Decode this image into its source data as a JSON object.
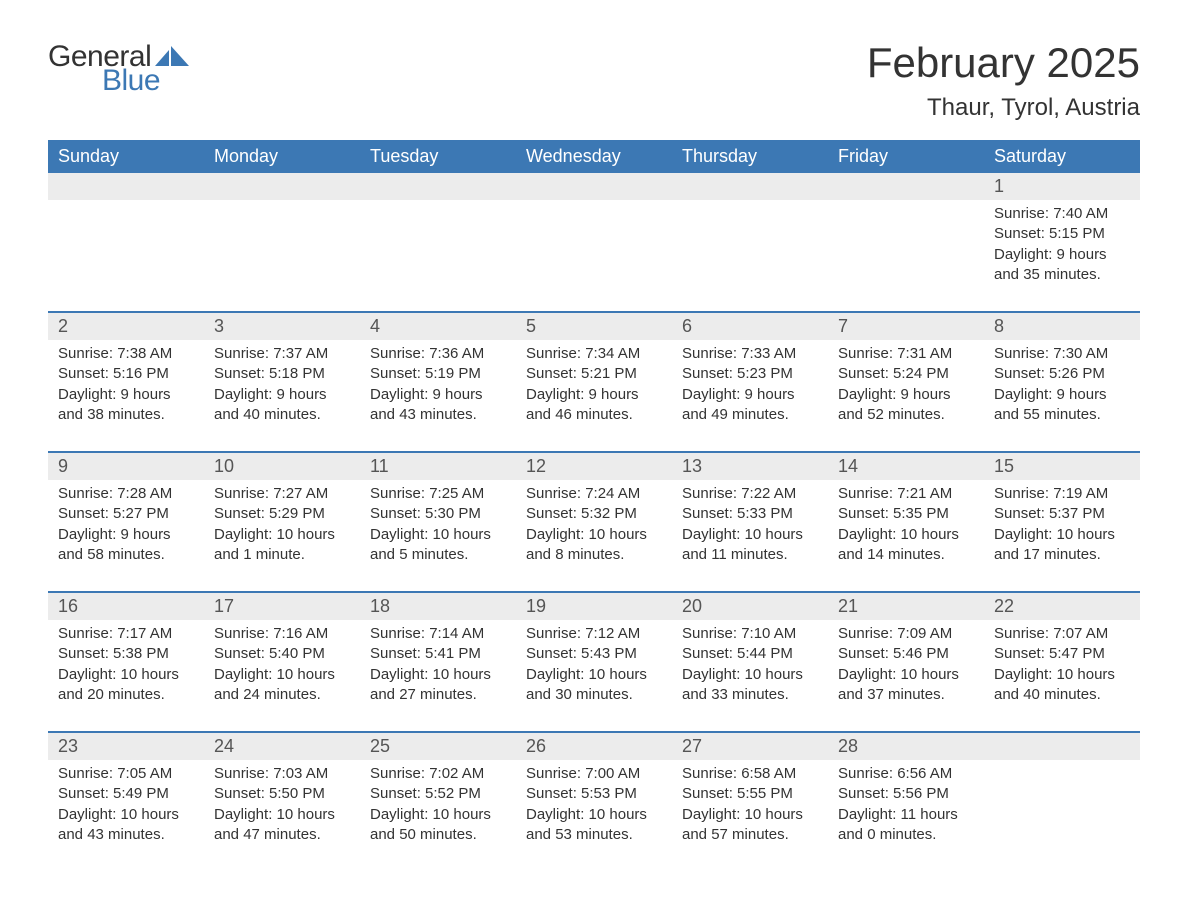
{
  "brand": {
    "general": "General",
    "blue": "Blue"
  },
  "title": "February 2025",
  "location": "Thaur, Tyrol, Austria",
  "colors": {
    "header_bg": "#3c78b4",
    "header_text": "#ffffff",
    "daynum_bg": "#ececec",
    "body_text": "#333333",
    "rule": "#3c78b4",
    "page_bg": "#ffffff"
  },
  "typography": {
    "title_fontsize": 42,
    "location_fontsize": 24,
    "dayname_fontsize": 18,
    "daynum_fontsize": 18,
    "body_fontsize": 15
  },
  "layout": {
    "columns": 7,
    "rows": 5,
    "first_weekday_index": 6,
    "days_in_month": 28
  },
  "daynames": [
    "Sunday",
    "Monday",
    "Tuesday",
    "Wednesday",
    "Thursday",
    "Friday",
    "Saturday"
  ],
  "days": [
    {
      "n": 1,
      "sunrise": "7:40 AM",
      "sunset": "5:15 PM",
      "daylight": "9 hours and 35 minutes."
    },
    {
      "n": 2,
      "sunrise": "7:38 AM",
      "sunset": "5:16 PM",
      "daylight": "9 hours and 38 minutes."
    },
    {
      "n": 3,
      "sunrise": "7:37 AM",
      "sunset": "5:18 PM",
      "daylight": "9 hours and 40 minutes."
    },
    {
      "n": 4,
      "sunrise": "7:36 AM",
      "sunset": "5:19 PM",
      "daylight": "9 hours and 43 minutes."
    },
    {
      "n": 5,
      "sunrise": "7:34 AM",
      "sunset": "5:21 PM",
      "daylight": "9 hours and 46 minutes."
    },
    {
      "n": 6,
      "sunrise": "7:33 AM",
      "sunset": "5:23 PM",
      "daylight": "9 hours and 49 minutes."
    },
    {
      "n": 7,
      "sunrise": "7:31 AM",
      "sunset": "5:24 PM",
      "daylight": "9 hours and 52 minutes."
    },
    {
      "n": 8,
      "sunrise": "7:30 AM",
      "sunset": "5:26 PM",
      "daylight": "9 hours and 55 minutes."
    },
    {
      "n": 9,
      "sunrise": "7:28 AM",
      "sunset": "5:27 PM",
      "daylight": "9 hours and 58 minutes."
    },
    {
      "n": 10,
      "sunrise": "7:27 AM",
      "sunset": "5:29 PM",
      "daylight": "10 hours and 1 minute."
    },
    {
      "n": 11,
      "sunrise": "7:25 AM",
      "sunset": "5:30 PM",
      "daylight": "10 hours and 5 minutes."
    },
    {
      "n": 12,
      "sunrise": "7:24 AM",
      "sunset": "5:32 PM",
      "daylight": "10 hours and 8 minutes."
    },
    {
      "n": 13,
      "sunrise": "7:22 AM",
      "sunset": "5:33 PM",
      "daylight": "10 hours and 11 minutes."
    },
    {
      "n": 14,
      "sunrise": "7:21 AM",
      "sunset": "5:35 PM",
      "daylight": "10 hours and 14 minutes."
    },
    {
      "n": 15,
      "sunrise": "7:19 AM",
      "sunset": "5:37 PM",
      "daylight": "10 hours and 17 minutes."
    },
    {
      "n": 16,
      "sunrise": "7:17 AM",
      "sunset": "5:38 PM",
      "daylight": "10 hours and 20 minutes."
    },
    {
      "n": 17,
      "sunrise": "7:16 AM",
      "sunset": "5:40 PM",
      "daylight": "10 hours and 24 minutes."
    },
    {
      "n": 18,
      "sunrise": "7:14 AM",
      "sunset": "5:41 PM",
      "daylight": "10 hours and 27 minutes."
    },
    {
      "n": 19,
      "sunrise": "7:12 AM",
      "sunset": "5:43 PM",
      "daylight": "10 hours and 30 minutes."
    },
    {
      "n": 20,
      "sunrise": "7:10 AM",
      "sunset": "5:44 PM",
      "daylight": "10 hours and 33 minutes."
    },
    {
      "n": 21,
      "sunrise": "7:09 AM",
      "sunset": "5:46 PM",
      "daylight": "10 hours and 37 minutes."
    },
    {
      "n": 22,
      "sunrise": "7:07 AM",
      "sunset": "5:47 PM",
      "daylight": "10 hours and 40 minutes."
    },
    {
      "n": 23,
      "sunrise": "7:05 AM",
      "sunset": "5:49 PM",
      "daylight": "10 hours and 43 minutes."
    },
    {
      "n": 24,
      "sunrise": "7:03 AM",
      "sunset": "5:50 PM",
      "daylight": "10 hours and 47 minutes."
    },
    {
      "n": 25,
      "sunrise": "7:02 AM",
      "sunset": "5:52 PM",
      "daylight": "10 hours and 50 minutes."
    },
    {
      "n": 26,
      "sunrise": "7:00 AM",
      "sunset": "5:53 PM",
      "daylight": "10 hours and 53 minutes."
    },
    {
      "n": 27,
      "sunrise": "6:58 AM",
      "sunset": "5:55 PM",
      "daylight": "10 hours and 57 minutes."
    },
    {
      "n": 28,
      "sunrise": "6:56 AM",
      "sunset": "5:56 PM",
      "daylight": "11 hours and 0 minutes."
    }
  ],
  "labels": {
    "sunrise_prefix": "Sunrise: ",
    "sunset_prefix": "Sunset: ",
    "daylight_prefix": "Daylight: "
  }
}
